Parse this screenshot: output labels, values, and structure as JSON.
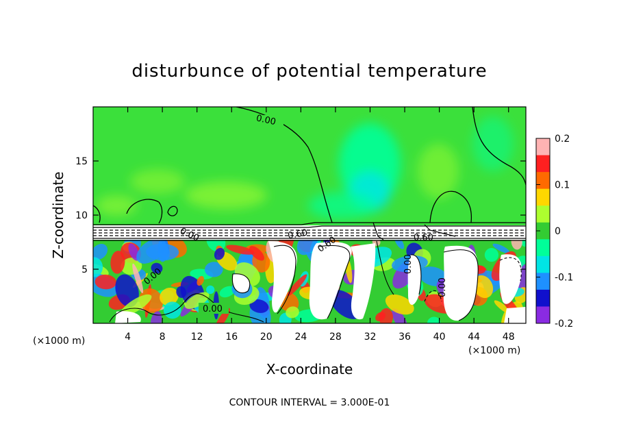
{
  "chart_data": {
    "type": "heatmap",
    "title": "disturbunce of potential temperature",
    "xlabel": "X-coordinate",
    "ylabel": "Z-coordinate",
    "x_unit": "(×1000 m)",
    "x_unit_right": "(×1000 m)",
    "xlim": [
      0,
      50
    ],
    "ylim": [
      0,
      20
    ],
    "x_ticks": [
      4,
      8,
      12,
      16,
      20,
      24,
      28,
      32,
      36,
      40,
      44,
      48
    ],
    "y_ticks": [
      5,
      10,
      15
    ],
    "colorbar": {
      "range": [
        -0.2,
        0.2
      ],
      "ticks": [
        "0.2",
        "0.1",
        "0",
        "-0.1",
        "-0.2"
      ],
      "colors": [
        "#ffb3b3",
        "#ff2020",
        "#ff6a00",
        "#ffd700",
        "#adff2f",
        "#33cc33",
        "#00ff99",
        "#00e5e5",
        "#1e90ff",
        "#1010cc",
        "#8a2be2"
      ]
    },
    "contour_labels": [
      "0.00",
      "0.00",
      "0.00",
      "0.60",
      "0.60",
      "0.60",
      "0.00",
      "0.00",
      "0.00"
    ],
    "note": "CONTOUR INTERVAL = 3.000E-01"
  }
}
